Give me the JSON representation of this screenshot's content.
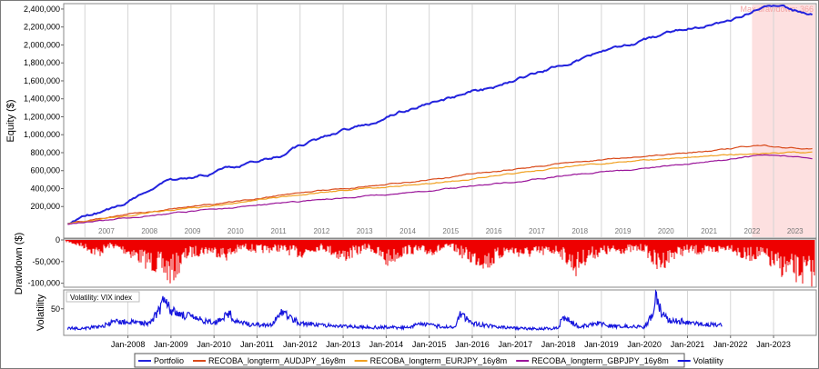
{
  "chart_data": [
    {
      "type": "line",
      "ylabel": "Equity ($)",
      "ylim": [
        0,
        2450000
      ],
      "yticks": [
        200000,
        400000,
        600000,
        800000,
        1000000,
        1200000,
        1400000,
        1600000,
        1800000,
        2000000,
        2200000,
        2400000
      ],
      "ytick_labels": [
        "200,000",
        "400,000",
        "600,000",
        "800,000",
        "1,000,000",
        "1,200,000",
        "1,400,000",
        "1,600,000",
        "1,800,000",
        "2,000,000",
        "2,200,000",
        "2,400,000"
      ],
      "year_labels": [
        "2007",
        "2008",
        "2009",
        "2010",
        "2011",
        "2012",
        "2013",
        "2014",
        "2015",
        "2016",
        "2017",
        "2018",
        "2019",
        "2020",
        "2021",
        "2022",
        "2023"
      ],
      "annotation": "Max drawdown: 366",
      "highlight_start_year": 2022.5,
      "x_start_year": 2006.55,
      "x_end_year": 2023.95,
      "grid": true,
      "series": [
        {
          "name": "Portfolio",
          "color": "#2222dd",
          "x": [
            2006.6,
            2007.0,
            2007.5,
            2008.0,
            2008.5,
            2008.9,
            2009.3,
            2009.8,
            2010.3,
            2010.8,
            2011.5,
            2012.0,
            2012.6,
            2013.0,
            2013.6,
            2014.0,
            2014.6,
            2015.0,
            2015.6,
            2016.0,
            2016.6,
            2017.0,
            2017.6,
            2018.0,
            2018.6,
            2019.0,
            2019.6,
            2020.0,
            2020.6,
            2021.0,
            2021.6,
            2022.0,
            2022.4,
            2022.8,
            2023.2,
            2023.5,
            2023.9
          ],
          "y": [
            20000,
            80000,
            150000,
            260000,
            400000,
            480000,
            500000,
            560000,
            620000,
            680000,
            760000,
            880000,
            980000,
            1040000,
            1120000,
            1200000,
            1300000,
            1350000,
            1420000,
            1480000,
            1530000,
            1620000,
            1700000,
            1760000,
            1850000,
            1920000,
            1980000,
            2060000,
            2130000,
            2200000,
            2240000,
            2280000,
            2350000,
            2430000,
            2410000,
            2380000,
            2360000
          ]
        },
        {
          "name": "RECOBA_longterm_AUDJPY_16y8m",
          "color": "#d94a1a",
          "x": [
            2006.6,
            2007.5,
            2008.5,
            2009.5,
            2010.5,
            2011.5,
            2012.5,
            2013.5,
            2014.5,
            2015.5,
            2016.5,
            2017.5,
            2018.5,
            2019.5,
            2020.5,
            2021.5,
            2022.3,
            2022.8,
            2023.3,
            2023.9
          ],
          "y": [
            10000,
            80000,
            140000,
            200000,
            250000,
            320000,
            380000,
            420000,
            470000,
            530000,
            590000,
            650000,
            700000,
            740000,
            780000,
            820000,
            860000,
            880000,
            850000,
            840000
          ]
        },
        {
          "name": "RECOBA_longterm_EURJPY_16y8m",
          "color": "#f0a020",
          "x": [
            2006.6,
            2007.5,
            2008.5,
            2009.5,
            2010.5,
            2011.5,
            2012.5,
            2013.5,
            2014.5,
            2015.5,
            2016.5,
            2017.5,
            2018.5,
            2019.5,
            2020.5,
            2021.5,
            2022.3,
            2022.8,
            2023.3,
            2023.9
          ],
          "y": [
            10000,
            70000,
            130000,
            180000,
            240000,
            300000,
            360000,
            400000,
            440000,
            480000,
            540000,
            600000,
            660000,
            700000,
            730000,
            760000,
            780000,
            790000,
            800000,
            800000
          ]
        },
        {
          "name": "RECOBA_longterm_GBPJPY_16y8m",
          "color": "#9a159a",
          "x": [
            2006.6,
            2007.5,
            2008.5,
            2009.5,
            2010.5,
            2011.5,
            2012.5,
            2013.5,
            2014.5,
            2015.5,
            2016.5,
            2017.5,
            2018.5,
            2019.5,
            2020.5,
            2021.5,
            2022.3,
            2022.8,
            2023.3,
            2023.9
          ],
          "y": [
            5000,
            50000,
            100000,
            150000,
            190000,
            230000,
            280000,
            310000,
            350000,
            400000,
            450000,
            510000,
            560000,
            600000,
            650000,
            700000,
            750000,
            780000,
            770000,
            720000
          ]
        }
      ]
    },
    {
      "type": "bar",
      "ylabel": "Drawdown ($)",
      "ylim": [
        -105000,
        0
      ],
      "yticks": [
        0,
        -50000,
        -100000
      ],
      "ytick_labels": [
        "0",
        "-50,000",
        "-100,000"
      ],
      "color": "#ee0000",
      "series": [
        {
          "name": "Drawdown",
          "color": "#ee0000",
          "x": [
            2006.6,
            2007.0,
            2007.3,
            2007.6,
            2008.0,
            2008.4,
            2008.8,
            2009.0,
            2009.4,
            2009.9,
            2010.3,
            2010.7,
            2011.0,
            2011.5,
            2012.0,
            2012.5,
            2013.0,
            2013.3,
            2013.6,
            2014.0,
            2014.5,
            2015.0,
            2015.5,
            2016.0,
            2016.4,
            2016.8,
            2017.2,
            2017.7,
            2018.0,
            2018.4,
            2018.7,
            2019.0,
            2019.5,
            2020.0,
            2020.3,
            2020.7,
            2021.0,
            2021.5,
            2022.0,
            2022.3,
            2022.7,
            2023.0,
            2023.4,
            2023.9
          ],
          "y": [
            -5000,
            -20000,
            -40000,
            -15000,
            -35000,
            -60000,
            -80000,
            -100000,
            -40000,
            -30000,
            -45000,
            -20000,
            -30000,
            -25000,
            -40000,
            -20000,
            -50000,
            -35000,
            -20000,
            -60000,
            -30000,
            -35000,
            -20000,
            -55000,
            -65000,
            -30000,
            -40000,
            -35000,
            -30000,
            -80000,
            -45000,
            -35000,
            -30000,
            -25000,
            -75000,
            -40000,
            -30000,
            -35000,
            -20000,
            -50000,
            -40000,
            -70000,
            -90000,
            -100000
          ]
        }
      ]
    },
    {
      "type": "line",
      "ylabel": "Volatility",
      "legend_title": "Volatility: VIX index",
      "ylim": [
        0,
        85
      ],
      "yticks": [
        50
      ],
      "ytick_labels": [
        "50"
      ],
      "x_tick_labels": [
        "Jan-2008",
        "Jan-2009",
        "Jan-2010",
        "Jan-2011",
        "Jan-2012",
        "Jan-2013",
        "Jan-2014",
        "Jan-2015",
        "Jan-2016",
        "Jan-2017",
        "Jan-2018",
        "Jan-2019",
        "Jan-2020",
        "Jan-2021",
        "Jan-2022",
        "Jan-2023"
      ],
      "x_tick_years": [
        2008,
        2009,
        2010,
        2011,
        2012,
        2013,
        2014,
        2015,
        2016,
        2017,
        2018,
        2019,
        2020,
        2021,
        2022,
        2023
      ],
      "series": [
        {
          "name": "Volatility",
          "color": "#1515dd",
          "x": [
            2006.6,
            2007.0,
            2007.4,
            2007.7,
            2008.0,
            2008.5,
            2008.75,
            2008.85,
            2009.0,
            2009.3,
            2009.7,
            2010.0,
            2010.35,
            2010.5,
            2010.8,
            2011.3,
            2011.6,
            2011.75,
            2012.0,
            2012.5,
            2013.0,
            2013.5,
            2014.0,
            2014.5,
            2014.8,
            2015.0,
            2015.6,
            2015.7,
            2016.0,
            2016.5,
            2017.0,
            2017.5,
            2018.0,
            2018.1,
            2018.5,
            2018.9,
            2019.2,
            2019.6,
            2020.0,
            2020.2,
            2020.25,
            2020.4,
            2020.6,
            2021.0,
            2021.5,
            2021.8
          ],
          "y": [
            12,
            12,
            16,
            25,
            24,
            22,
            50,
            80,
            45,
            38,
            28,
            22,
            42,
            25,
            20,
            17,
            45,
            35,
            22,
            18,
            16,
            14,
            14,
            13,
            22,
            18,
            13,
            40,
            22,
            15,
            12,
            11,
            12,
            35,
            15,
            22,
            17,
            16,
            14,
            40,
            80,
            40,
            27,
            25,
            20,
            18
          ]
        }
      ]
    }
  ],
  "legend": {
    "items": [
      {
        "label": "Portfolio",
        "color": "#2222dd"
      },
      {
        "label": "RECOBA_longterm_AUDJPY_16y8m",
        "color": "#d94a1a"
      },
      {
        "label": "RECOBA_longterm_EURJPY_16y8m",
        "color": "#f0a020"
      },
      {
        "label": "RECOBA_longterm_GBPJPY_16y8m",
        "color": "#9a159a"
      },
      {
        "label": "Volatility",
        "color": "#1515dd"
      }
    ]
  }
}
